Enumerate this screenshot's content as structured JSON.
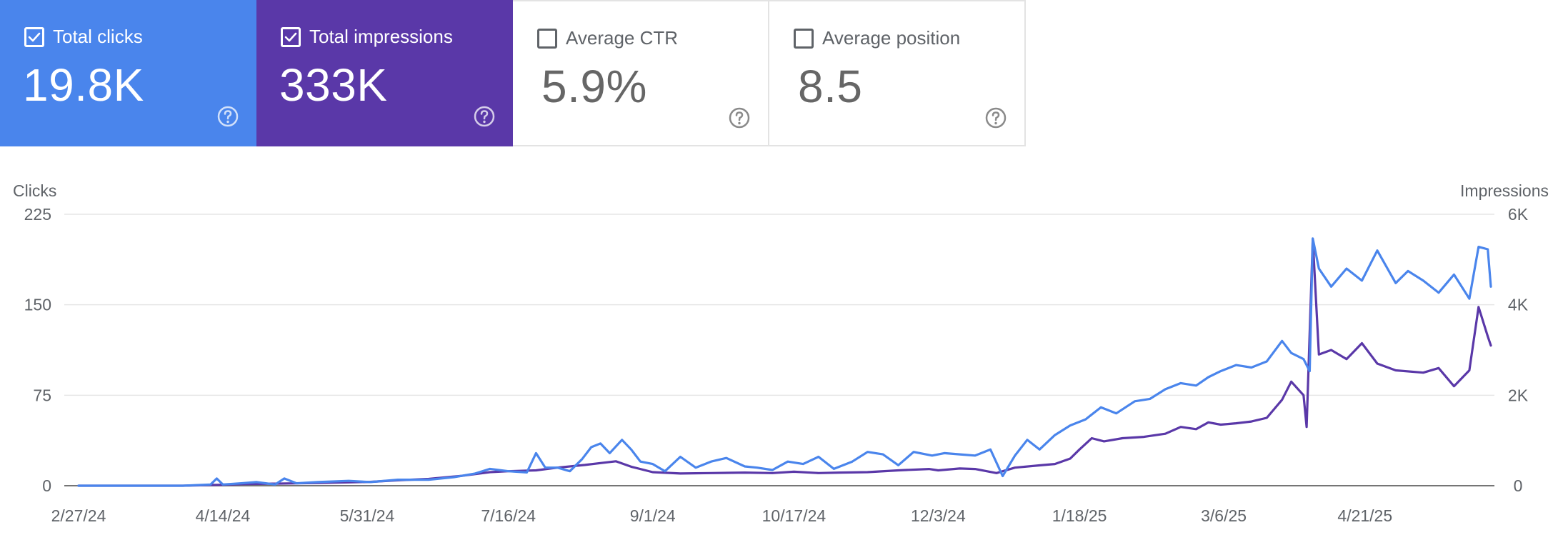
{
  "cards": [
    {
      "label": "Total clicks",
      "value": "19.8K",
      "checked": true,
      "color": "#4a85ec"
    },
    {
      "label": "Total impressions",
      "value": "333K",
      "checked": true,
      "color": "#5a38a8"
    },
    {
      "label": "Average CTR",
      "value": "5.9%",
      "checked": false,
      "color": "#ffffff"
    },
    {
      "label": "Average position",
      "value": "8.5",
      "checked": false,
      "color": "#ffffff"
    }
  ],
  "icons": {
    "checkbox": "checkbox-icon",
    "help": "help-circle-icon"
  },
  "chart_data": {
    "type": "line",
    "y_left_label": "Clicks",
    "y_right_label": "Impressions",
    "y_left_ticks": [
      "225",
      "150",
      "75",
      "0"
    ],
    "y_right_ticks": [
      "6K",
      "4K",
      "2K",
      "0"
    ],
    "y_left_range": [
      0,
      225
    ],
    "y_right_range": [
      0,
      6000
    ],
    "x_tick_labels": [
      "2/27/24",
      "4/14/24",
      "5/31/24",
      "7/16/24",
      "9/1/24",
      "10/17/24",
      "12/3/24",
      "1/18/25",
      "3/6/25",
      "4/21/25"
    ],
    "x_range": [
      "2/27/24",
      "6/1/25"
    ],
    "grid": true,
    "series": [
      {
        "name": "Clicks",
        "axis": "left",
        "color": "#4a85ec",
        "points": [
          [
            "2/27/24",
            0
          ],
          [
            "3/15/24",
            0
          ],
          [
            "4/1/24",
            0
          ],
          [
            "4/10/24",
            1
          ],
          [
            "4/12/24",
            6
          ],
          [
            "4/14/24",
            1
          ],
          [
            "4/20/24",
            2
          ],
          [
            "4/25/24",
            3
          ],
          [
            "5/1/24",
            1
          ],
          [
            "5/4/24",
            6
          ],
          [
            "5/8/24",
            2
          ],
          [
            "5/15/24",
            3
          ],
          [
            "5/25/24",
            4
          ],
          [
            "6/1/24",
            3
          ],
          [
            "6/10/24",
            5
          ],
          [
            "6/20/24",
            5
          ],
          [
            "6/28/24",
            7
          ],
          [
            "7/5/24",
            10
          ],
          [
            "7/10/24",
            14
          ],
          [
            "7/16/24",
            12
          ],
          [
            "7/22/24",
            11
          ],
          [
            "7/25/24",
            27
          ],
          [
            "7/28/24",
            15
          ],
          [
            "8/1/24",
            15
          ],
          [
            "8/5/24",
            12
          ],
          [
            "8/9/24",
            22
          ],
          [
            "8/12/24",
            32
          ],
          [
            "8/15/24",
            35
          ],
          [
            "8/18/24",
            27
          ],
          [
            "8/22/24",
            38
          ],
          [
            "8/25/24",
            30
          ],
          [
            "8/28/24",
            20
          ],
          [
            "9/1/24",
            18
          ],
          [
            "9/5/24",
            12
          ],
          [
            "9/10/24",
            24
          ],
          [
            "9/15/24",
            15
          ],
          [
            "9/20/24",
            20
          ],
          [
            "9/25/24",
            23
          ],
          [
            "10/1/24",
            16
          ],
          [
            "10/5/24",
            15
          ],
          [
            "10/10/24",
            13
          ],
          [
            "10/15/24",
            20
          ],
          [
            "10/20/24",
            18
          ],
          [
            "10/25/24",
            24
          ],
          [
            "10/30/24",
            14
          ],
          [
            "11/5/24",
            20
          ],
          [
            "11/10/24",
            28
          ],
          [
            "11/15/24",
            26
          ],
          [
            "11/20/24",
            17
          ],
          [
            "11/25/24",
            28
          ],
          [
            "12/1/24",
            25
          ],
          [
            "12/5/24",
            27
          ],
          [
            "12/10/24",
            26
          ],
          [
            "12/15/24",
            25
          ],
          [
            "12/20/24",
            30
          ],
          [
            "12/24/24",
            8
          ],
          [
            "12/28/24",
            25
          ],
          [
            "1/1/25",
            38
          ],
          [
            "1/5/25",
            30
          ],
          [
            "1/10/25",
            42
          ],
          [
            "1/15/25",
            50
          ],
          [
            "1/20/25",
            55
          ],
          [
            "1/25/25",
            65
          ],
          [
            "1/30/25",
            60
          ],
          [
            "2/5/25",
            70
          ],
          [
            "2/10/25",
            72
          ],
          [
            "2/15/25",
            80
          ],
          [
            "2/20/25",
            85
          ],
          [
            "2/25/25",
            83
          ],
          [
            "3/1/25",
            90
          ],
          [
            "3/5/25",
            95
          ],
          [
            "3/10/25",
            100
          ],
          [
            "3/15/25",
            98
          ],
          [
            "3/20/25",
            103
          ],
          [
            "3/25/25",
            120
          ],
          [
            "3/28/25",
            110
          ],
          [
            "4/1/25",
            105
          ],
          [
            "4/3/25",
            95
          ],
          [
            "4/4/25",
            205
          ],
          [
            "4/6/25",
            180
          ],
          [
            "4/10/25",
            165
          ],
          [
            "4/15/25",
            180
          ],
          [
            "4/20/25",
            170
          ],
          [
            "4/25/25",
            195
          ],
          [
            "5/1/25",
            168
          ],
          [
            "5/5/25",
            178
          ],
          [
            "5/10/25",
            170
          ],
          [
            "5/15/25",
            160
          ],
          [
            "5/20/25",
            175
          ],
          [
            "5/25/25",
            155
          ],
          [
            "5/28/25",
            198
          ],
          [
            "5/31/25",
            196
          ],
          [
            "6/1/25",
            165
          ]
        ]
      },
      {
        "name": "Impressions",
        "axis": "right",
        "color": "#5a38a8",
        "points": [
          [
            "2/27/24",
            0
          ],
          [
            "3/15/24",
            0
          ],
          [
            "4/1/24",
            0
          ],
          [
            "4/10/24",
            15
          ],
          [
            "4/14/24",
            20
          ],
          [
            "4/20/24",
            35
          ],
          [
            "5/1/24",
            45
          ],
          [
            "5/15/24",
            60
          ],
          [
            "5/25/24",
            75
          ],
          [
            "6/1/24",
            85
          ],
          [
            "6/10/24",
            120
          ],
          [
            "6/20/24",
            150
          ],
          [
            "7/1/24",
            220
          ],
          [
            "7/10/24",
            300
          ],
          [
            "7/16/24",
            320
          ],
          [
            "7/25/24",
            340
          ],
          [
            "8/1/24",
            400
          ],
          [
            "8/10/24",
            460
          ],
          [
            "8/15/24",
            500
          ],
          [
            "8/20/24",
            540
          ],
          [
            "8/25/24",
            420
          ],
          [
            "9/1/24",
            300
          ],
          [
            "9/10/24",
            270
          ],
          [
            "9/20/24",
            280
          ],
          [
            "10/1/24",
            290
          ],
          [
            "10/10/24",
            280
          ],
          [
            "10/17/24",
            310
          ],
          [
            "10/25/24",
            280
          ],
          [
            "11/1/24",
            290
          ],
          [
            "11/10/24",
            300
          ],
          [
            "11/20/24",
            340
          ],
          [
            "11/30/24",
            370
          ],
          [
            "12/3/24",
            340
          ],
          [
            "12/10/24",
            380
          ],
          [
            "12/15/24",
            370
          ],
          [
            "12/22/24",
            280
          ],
          [
            "12/28/24",
            400
          ],
          [
            "1/5/25",
            450
          ],
          [
            "1/10/25",
            480
          ],
          [
            "1/15/25",
            600
          ],
          [
            "1/18/25",
            800
          ],
          [
            "1/22/25",
            1050
          ],
          [
            "1/26/25",
            980
          ],
          [
            "2/1/25",
            1050
          ],
          [
            "2/8/25",
            1080
          ],
          [
            "2/15/25",
            1150
          ],
          [
            "2/20/25",
            1300
          ],
          [
            "2/25/25",
            1250
          ],
          [
            "3/1/25",
            1400
          ],
          [
            "3/5/25",
            1350
          ],
          [
            "3/10/25",
            1380
          ],
          [
            "3/15/25",
            1420
          ],
          [
            "3/20/25",
            1500
          ],
          [
            "3/25/25",
            1900
          ],
          [
            "3/28/25",
            2300
          ],
          [
            "4/1/25",
            2000
          ],
          [
            "4/2/25",
            1300
          ],
          [
            "4/4/25",
            5450
          ],
          [
            "4/6/25",
            2900
          ],
          [
            "4/10/25",
            3000
          ],
          [
            "4/15/25",
            2800
          ],
          [
            "4/20/25",
            3150
          ],
          [
            "4/25/25",
            2700
          ],
          [
            "5/1/25",
            2550
          ],
          [
            "5/10/25",
            2500
          ],
          [
            "5/15/25",
            2600
          ],
          [
            "5/20/25",
            2200
          ],
          [
            "5/25/25",
            2550
          ],
          [
            "5/28/25",
            3950
          ],
          [
            "5/31/25",
            3300
          ],
          [
            "6/1/25",
            3100
          ]
        ]
      }
    ]
  }
}
